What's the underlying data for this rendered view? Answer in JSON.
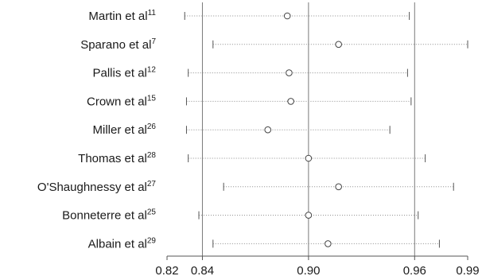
{
  "chart_data": {
    "type": "forest",
    "title": "",
    "xlabel": "",
    "ylabel": "",
    "xlim": [
      0.82,
      0.99
    ],
    "xticks": [
      "0.82",
      "0.84",
      "0.90",
      "0.96",
      "0.99"
    ],
    "xtick_values": [
      0.82,
      0.84,
      0.9,
      0.96,
      0.99
    ],
    "reference_lines": [
      0.84,
      0.9,
      0.96
    ],
    "grid": false,
    "studies": [
      {
        "name": "Martin et al",
        "ref": "11",
        "estimate": 0.888,
        "lower": 0.83,
        "upper": 0.957
      },
      {
        "name": "Sparano et al",
        "ref": "7",
        "estimate": 0.917,
        "lower": 0.846,
        "upper": 0.99
      },
      {
        "name": "Pallis et al",
        "ref": "12",
        "estimate": 0.889,
        "lower": 0.832,
        "upper": 0.956
      },
      {
        "name": "Crown et al",
        "ref": "15",
        "estimate": 0.89,
        "lower": 0.831,
        "upper": 0.958
      },
      {
        "name": "Miller et al",
        "ref": "26",
        "estimate": 0.877,
        "lower": 0.831,
        "upper": 0.946
      },
      {
        "name": "Thomas et al",
        "ref": "28",
        "estimate": 0.9,
        "lower": 0.832,
        "upper": 0.966
      },
      {
        "name": "O'Shaughnessy et al",
        "ref": "27",
        "estimate": 0.917,
        "lower": 0.852,
        "upper": 0.982
      },
      {
        "name": "Bonneterre et al",
        "ref": "25",
        "estimate": 0.9,
        "lower": 0.838,
        "upper": 0.962
      },
      {
        "name": "Albain et al",
        "ref": "29",
        "estimate": 0.911,
        "lower": 0.846,
        "upper": 0.974
      }
    ]
  }
}
